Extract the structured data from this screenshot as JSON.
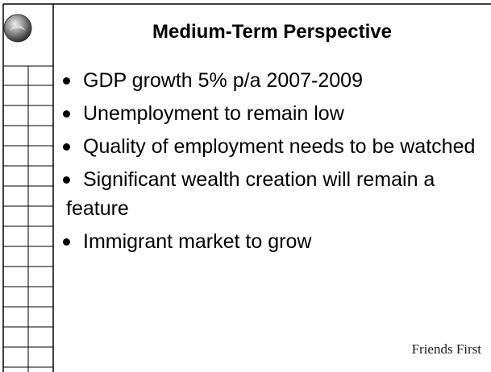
{
  "slide": {
    "title": "Medium-Term Perspective",
    "bullets": [
      "GDP growth 5% p/a 2007-2009",
      "Unemployment to remain low",
      "Quality of employment needs to be watched",
      "Significant wealth creation will remain a feature",
      "Immigrant market to grow"
    ],
    "logo": "Friends First"
  }
}
